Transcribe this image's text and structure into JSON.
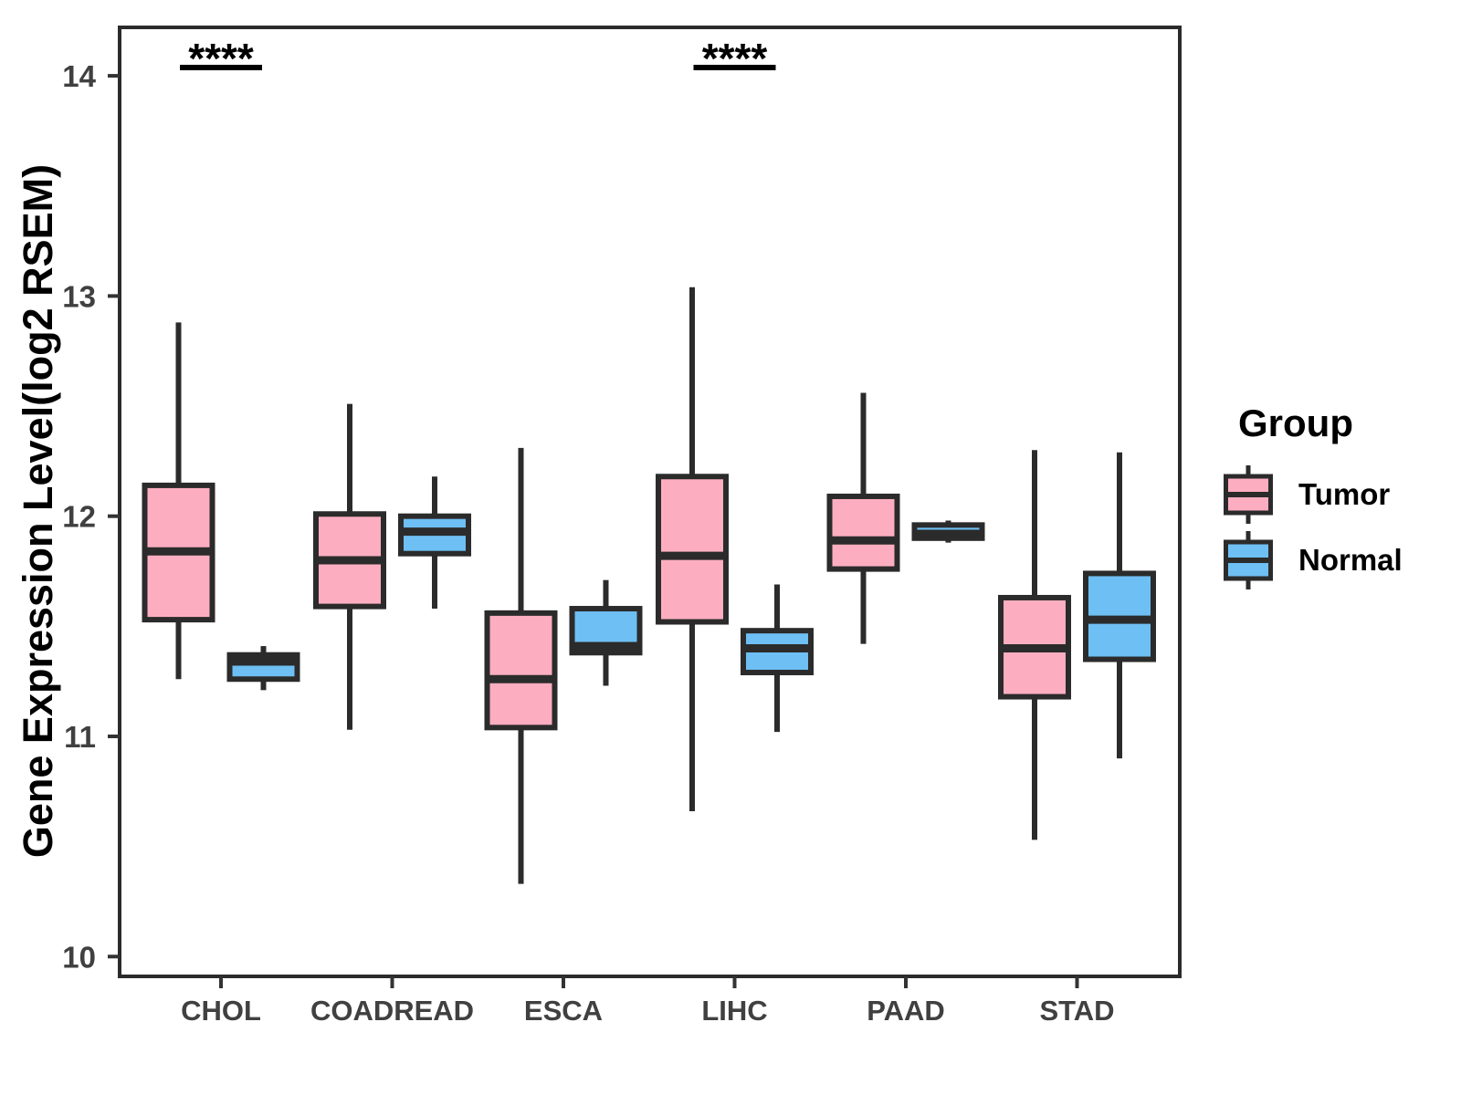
{
  "chart_data": {
    "type": "boxplot",
    "title": "",
    "xlabel": "",
    "ylabel": "Gene Expression Level(log2 RSEM)",
    "categories": [
      "CHOL",
      "COADREAD",
      "ESCA",
      "LIHC",
      "PAAD",
      "STAD"
    ],
    "yticks": [
      10,
      11,
      12,
      13,
      14
    ],
    "ylim": [
      9.91,
      14.22
    ],
    "grid": false,
    "legend": {
      "title": "Group",
      "position": "right"
    },
    "series": [
      {
        "name": "Tumor",
        "color": "#FCAEC0",
        "boxes": [
          {
            "category": "CHOL",
            "min": 11.26,
            "q1": 11.53,
            "median": 11.84,
            "q3": 12.14,
            "max": 12.88
          },
          {
            "category": "COADREAD",
            "min": 11.03,
            "q1": 11.59,
            "median": 11.8,
            "q3": 12.01,
            "max": 12.51
          },
          {
            "category": "ESCA",
            "min": 10.33,
            "q1": 11.04,
            "median": 11.26,
            "q3": 11.56,
            "max": 12.31
          },
          {
            "category": "LIHC",
            "min": 10.66,
            "q1": 11.52,
            "median": 11.82,
            "q3": 12.18,
            "max": 13.04
          },
          {
            "category": "PAAD",
            "min": 11.42,
            "q1": 11.76,
            "median": 11.89,
            "q3": 12.09,
            "max": 12.56
          },
          {
            "category": "STAD",
            "min": 10.53,
            "q1": 11.18,
            "median": 11.4,
            "q3": 11.63,
            "max": 12.3
          }
        ]
      },
      {
        "name": "Normal",
        "color": "#6EBFF3",
        "boxes": [
          {
            "category": "CHOL",
            "min": 11.21,
            "q1": 11.26,
            "median": 11.34,
            "q3": 11.37,
            "max": 11.41
          },
          {
            "category": "COADREAD",
            "min": 11.58,
            "q1": 11.83,
            "median": 11.93,
            "q3": 12.0,
            "max": 12.18
          },
          {
            "category": "ESCA",
            "min": 11.23,
            "q1": 11.38,
            "median": 11.41,
            "q3": 11.58,
            "max": 11.71
          },
          {
            "category": "LIHC",
            "min": 11.02,
            "q1": 11.29,
            "median": 11.4,
            "q3": 11.48,
            "max": 11.69
          },
          {
            "category": "PAAD",
            "min": 11.88,
            "q1": 11.9,
            "median": 11.92,
            "q3": 11.96,
            "max": 11.98
          },
          {
            "category": "STAD",
            "min": 10.9,
            "q1": 11.35,
            "median": 11.53,
            "q3": 11.74,
            "max": 12.29
          }
        ]
      }
    ],
    "annotations": [
      {
        "category": "CHOL",
        "label": "****"
      },
      {
        "category": "LIHC",
        "label": "****"
      }
    ],
    "colors": {
      "frame": "#2B2B2B",
      "axis_text": "#404040",
      "annotation": "#000000"
    }
  }
}
